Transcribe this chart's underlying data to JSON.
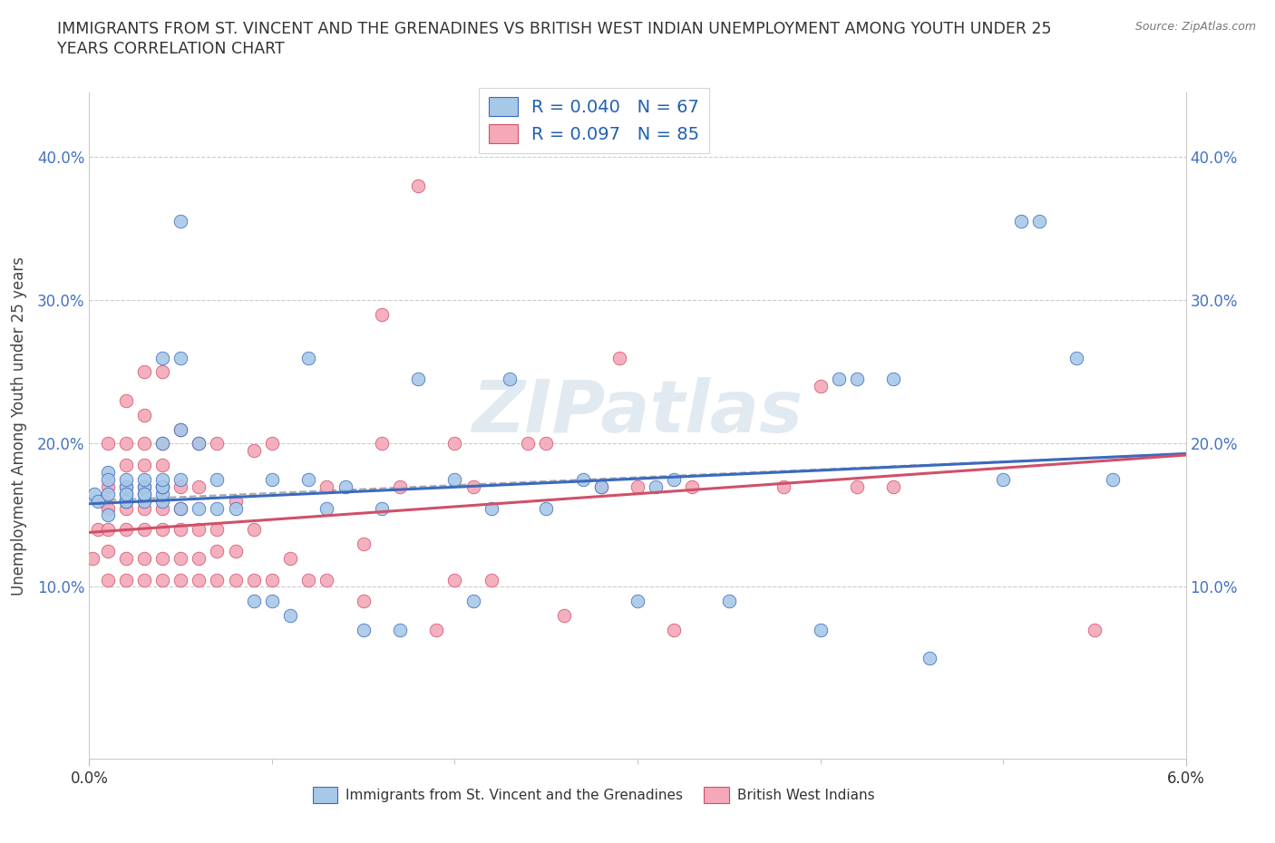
{
  "title_line1": "IMMIGRANTS FROM ST. VINCENT AND THE GRENADINES VS BRITISH WEST INDIAN UNEMPLOYMENT AMONG YOUTH UNDER 25",
  "title_line2": "YEARS CORRELATION CHART",
  "source": "Source: ZipAtlas.com",
  "ylabel": "Unemployment Among Youth under 25 years",
  "watermark": "ZIPatlas",
  "xlim": [
    0.0,
    0.06
  ],
  "ylim": [
    -0.02,
    0.445
  ],
  "ytick_positions": [
    0.0,
    0.1,
    0.2,
    0.3,
    0.4
  ],
  "ytick_labels": [
    "",
    "10.0%",
    "20.0%",
    "30.0%",
    "40.0%"
  ],
  "xtick_positions": [
    0.0,
    0.06
  ],
  "xtick_labels": [
    "0.0%",
    "6.0%"
  ],
  "xtick_minor": [
    0.01,
    0.02,
    0.03,
    0.04,
    0.05
  ],
  "series1_color": "#a8c8e8",
  "series2_color": "#f4a8b8",
  "line1_color": "#3a6abf",
  "line2_color": "#d05068",
  "trend_dash_color": "#aaaaaa",
  "background_color": "#ffffff",
  "blue_trend": [
    0.158,
    0.193
  ],
  "pink_trend": [
    0.138,
    0.192
  ],
  "dash_trend": [
    0.16,
    0.193
  ],
  "series1_x": [
    0.0003,
    0.0005,
    0.001,
    0.001,
    0.001,
    0.001,
    0.002,
    0.002,
    0.002,
    0.002,
    0.002,
    0.002,
    0.003,
    0.003,
    0.003,
    0.003,
    0.003,
    0.004,
    0.004,
    0.004,
    0.004,
    0.004,
    0.004,
    0.004,
    0.005,
    0.005,
    0.005,
    0.005,
    0.005,
    0.006,
    0.006,
    0.007,
    0.007,
    0.008,
    0.009,
    0.01,
    0.01,
    0.011,
    0.012,
    0.012,
    0.013,
    0.014,
    0.015,
    0.016,
    0.017,
    0.018,
    0.02,
    0.021,
    0.022,
    0.023,
    0.025,
    0.027,
    0.028,
    0.03,
    0.031,
    0.032,
    0.035,
    0.04,
    0.041,
    0.042,
    0.044,
    0.046,
    0.05,
    0.051,
    0.052,
    0.054,
    0.056
  ],
  "series1_y": [
    0.165,
    0.16,
    0.15,
    0.165,
    0.18,
    0.175,
    0.16,
    0.165,
    0.17,
    0.175,
    0.16,
    0.165,
    0.16,
    0.165,
    0.17,
    0.165,
    0.175,
    0.16,
    0.165,
    0.17,
    0.17,
    0.175,
    0.2,
    0.26,
    0.21,
    0.155,
    0.175,
    0.26,
    0.355,
    0.155,
    0.2,
    0.155,
    0.175,
    0.155,
    0.09,
    0.09,
    0.175,
    0.08,
    0.175,
    0.26,
    0.155,
    0.17,
    0.07,
    0.155,
    0.07,
    0.245,
    0.175,
    0.09,
    0.155,
    0.245,
    0.155,
    0.175,
    0.17,
    0.09,
    0.17,
    0.175,
    0.09,
    0.07,
    0.245,
    0.245,
    0.245,
    0.05,
    0.175,
    0.355,
    0.355,
    0.26,
    0.175
  ],
  "series2_x": [
    0.0002,
    0.0005,
    0.0008,
    0.001,
    0.001,
    0.001,
    0.001,
    0.001,
    0.001,
    0.002,
    0.002,
    0.002,
    0.002,
    0.002,
    0.002,
    0.002,
    0.002,
    0.003,
    0.003,
    0.003,
    0.003,
    0.003,
    0.003,
    0.003,
    0.003,
    0.003,
    0.004,
    0.004,
    0.004,
    0.004,
    0.004,
    0.004,
    0.004,
    0.004,
    0.005,
    0.005,
    0.005,
    0.005,
    0.005,
    0.005,
    0.006,
    0.006,
    0.006,
    0.006,
    0.006,
    0.007,
    0.007,
    0.007,
    0.007,
    0.008,
    0.008,
    0.008,
    0.009,
    0.009,
    0.009,
    0.01,
    0.01,
    0.011,
    0.012,
    0.013,
    0.013,
    0.015,
    0.015,
    0.016,
    0.016,
    0.017,
    0.018,
    0.019,
    0.02,
    0.02,
    0.021,
    0.022,
    0.024,
    0.025,
    0.026,
    0.028,
    0.029,
    0.03,
    0.032,
    0.033,
    0.038,
    0.04,
    0.042,
    0.044,
    0.055
  ],
  "series2_y": [
    0.12,
    0.14,
    0.16,
    0.105,
    0.125,
    0.14,
    0.155,
    0.17,
    0.2,
    0.105,
    0.12,
    0.14,
    0.155,
    0.17,
    0.185,
    0.2,
    0.23,
    0.105,
    0.12,
    0.14,
    0.155,
    0.17,
    0.185,
    0.2,
    0.22,
    0.25,
    0.105,
    0.12,
    0.14,
    0.155,
    0.17,
    0.185,
    0.2,
    0.25,
    0.105,
    0.12,
    0.14,
    0.155,
    0.17,
    0.21,
    0.105,
    0.12,
    0.14,
    0.17,
    0.2,
    0.105,
    0.125,
    0.14,
    0.2,
    0.105,
    0.125,
    0.16,
    0.105,
    0.14,
    0.195,
    0.105,
    0.2,
    0.12,
    0.105,
    0.105,
    0.17,
    0.09,
    0.13,
    0.29,
    0.2,
    0.17,
    0.38,
    0.07,
    0.105,
    0.2,
    0.17,
    0.105,
    0.2,
    0.2,
    0.08,
    0.17,
    0.26,
    0.17,
    0.07,
    0.17,
    0.17,
    0.24,
    0.17,
    0.17,
    0.07
  ]
}
